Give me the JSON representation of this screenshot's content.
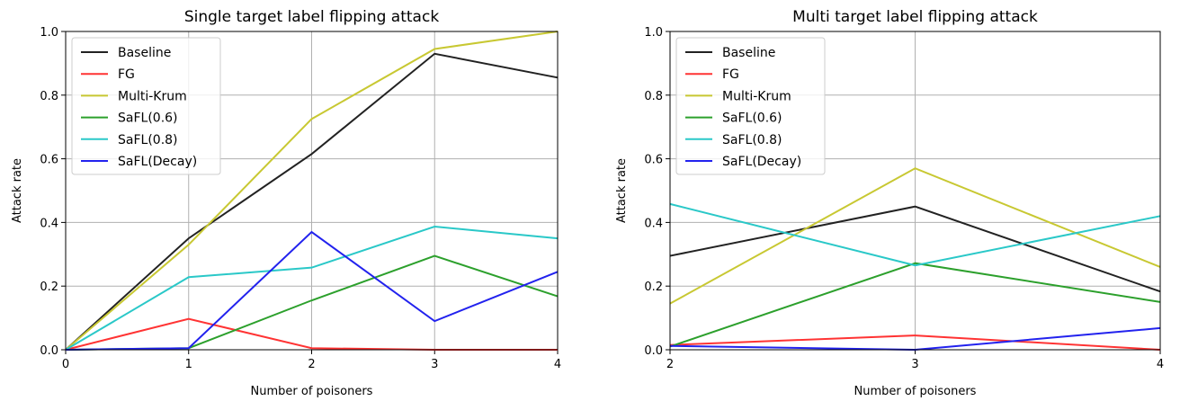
{
  "chart_data": [
    {
      "type": "line",
      "title": "Single target label flipping attack",
      "xlabel": "Number of poisoners",
      "ylabel": "Attack rate",
      "xlim": [
        0,
        4
      ],
      "ylim": [
        0,
        1
      ],
      "x": [
        0,
        1,
        2,
        3,
        4
      ],
      "xticks": [
        "0",
        "1",
        "2",
        "3",
        "4"
      ],
      "yticks": [
        "0.0",
        "0.2",
        "0.4",
        "0.6",
        "0.8",
        "1.0"
      ],
      "grid": true,
      "legend_position": "top-left",
      "series": [
        {
          "name": "Baseline",
          "color": "#222222",
          "values": [
            0.0,
            0.35,
            0.615,
            0.93,
            0.855
          ]
        },
        {
          "name": "FG",
          "color": "#ff3333",
          "values": [
            0.0,
            0.097,
            0.005,
            0.0,
            0.0
          ]
        },
        {
          "name": "Multi-Krum",
          "color": "#c8c832",
          "values": [
            0.0,
            0.33,
            0.725,
            0.945,
            1.0
          ]
        },
        {
          "name": "SaFL(0.6)",
          "color": "#2ca02c",
          "values": [
            0.0,
            0.005,
            0.155,
            0.295,
            0.168
          ]
        },
        {
          "name": "SaFL(0.8)",
          "color": "#2ac8c8",
          "values": [
            0.0,
            0.228,
            0.258,
            0.387,
            0.35
          ]
        },
        {
          "name": "SaFL(Decay)",
          "color": "#2222ee",
          "values": [
            0.0,
            0.005,
            0.37,
            0.09,
            0.245
          ]
        }
      ]
    },
    {
      "type": "line",
      "title": "Multi target label flipping attack",
      "xlabel": "Number of poisoners",
      "ylabel": "Attack rate",
      "xlim": [
        2,
        4
      ],
      "ylim": [
        0,
        1
      ],
      "x": [
        2,
        3,
        4
      ],
      "xticks": [
        "2",
        "3",
        "4"
      ],
      "yticks": [
        "0.0",
        "0.2",
        "0.4",
        "0.6",
        "0.8",
        "1.0"
      ],
      "grid": true,
      "legend_position": "top-left",
      "series": [
        {
          "name": "Baseline",
          "color": "#222222",
          "values": [
            0.295,
            0.45,
            0.183
          ]
        },
        {
          "name": "FG",
          "color": "#ff3333",
          "values": [
            0.015,
            0.045,
            0.0
          ]
        },
        {
          "name": "Multi-Krum",
          "color": "#c8c832",
          "values": [
            0.145,
            0.57,
            0.26
          ]
        },
        {
          "name": "SaFL(0.6)",
          "color": "#2ca02c",
          "values": [
            0.01,
            0.272,
            0.15
          ]
        },
        {
          "name": "SaFL(0.8)",
          "color": "#2ac8c8",
          "values": [
            0.458,
            0.265,
            0.42
          ]
        },
        {
          "name": "SaFL(Decay)",
          "color": "#2222ee",
          "values": [
            0.012,
            0.0,
            0.068
          ]
        }
      ]
    }
  ]
}
